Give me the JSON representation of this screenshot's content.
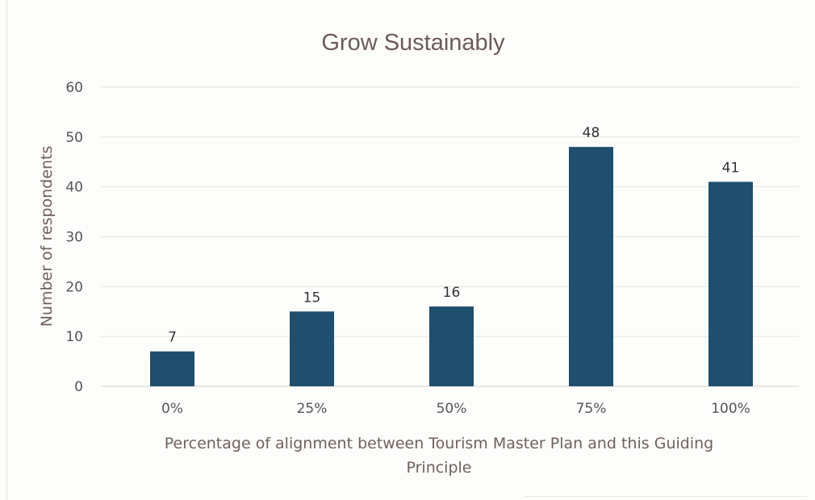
{
  "chart_data": {
    "type": "bar",
    "title": "Grow Sustainably",
    "xlabel_lines": [
      "Percentage of alignment between Tourism Master Plan and this Guiding",
      "Principle"
    ],
    "ylabel": "Number of respondents",
    "categories": [
      "0%",
      "25%",
      "50%",
      "75%",
      "100%"
    ],
    "values": [
      7,
      15,
      16,
      48,
      41
    ],
    "data_labels": [
      "7",
      "15",
      "16",
      "48",
      "41"
    ],
    "yticks": [
      "0",
      "10",
      "20",
      "30",
      "40",
      "50",
      "60"
    ],
    "ylim": [
      0,
      60
    ],
    "grid": true,
    "legend": "none",
    "bar_color": "#1f4e6e"
  }
}
